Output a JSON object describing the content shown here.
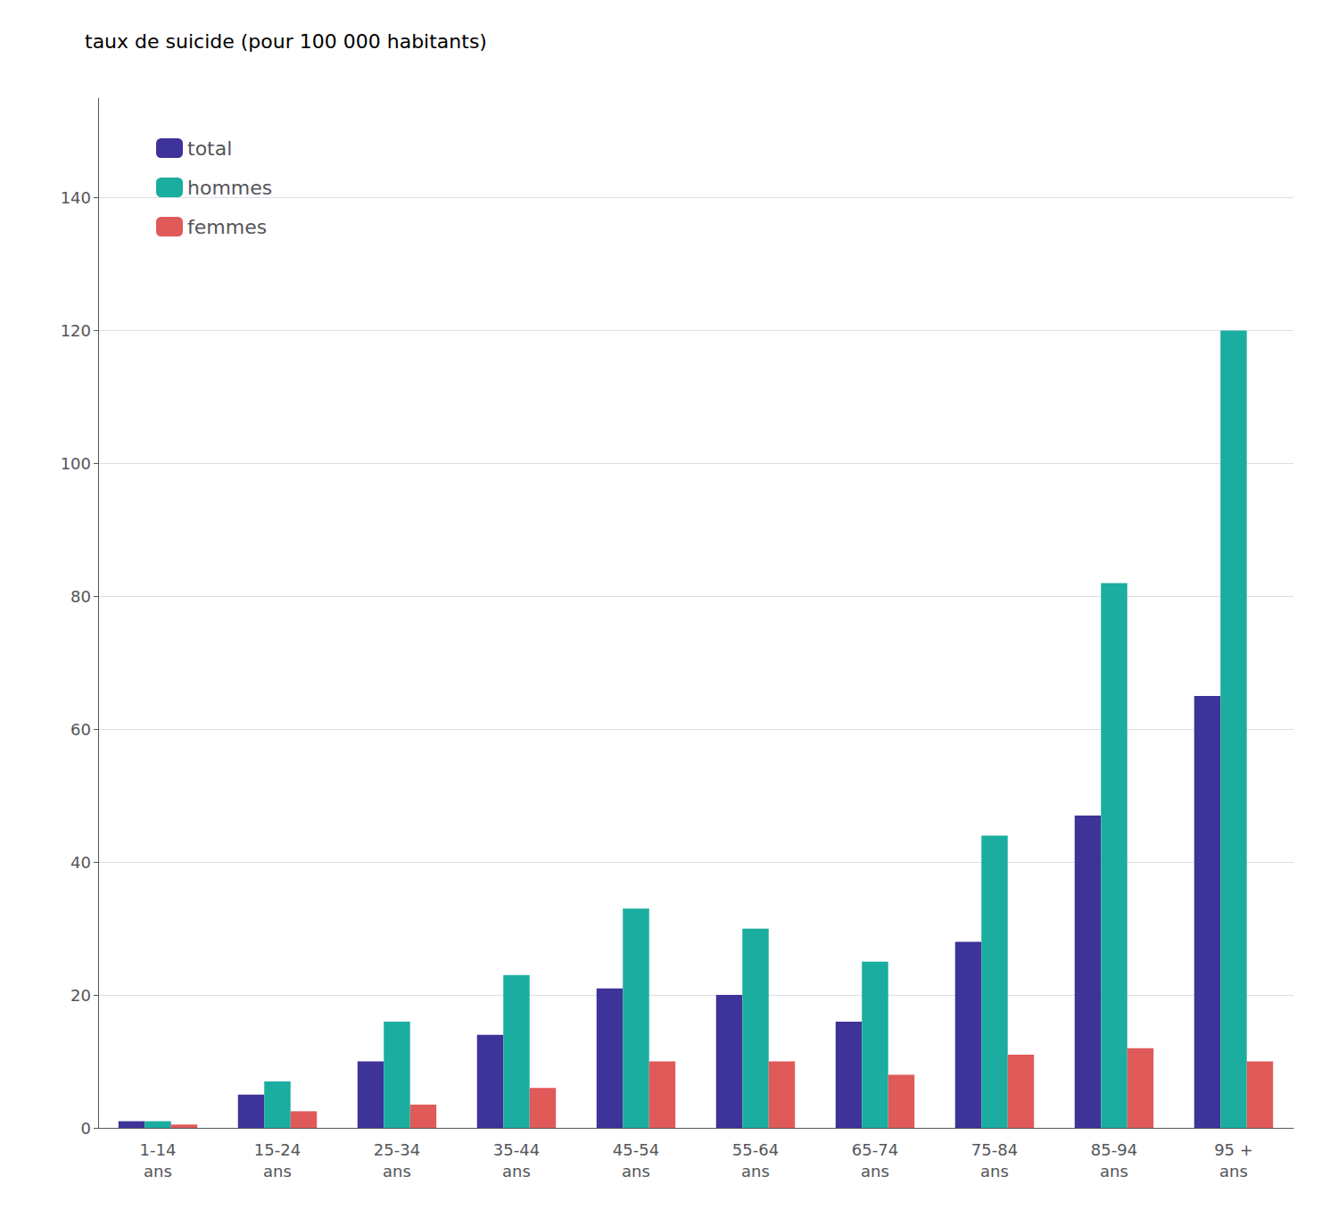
{
  "chart_data": {
    "type": "bar",
    "title": "taux de suicide (pour 100 000 habitants)",
    "categories": [
      "1-14\nans",
      "15-24\nans",
      "25-34\nans",
      "35-44\nans",
      "45-54\nans",
      "55-64\nans",
      "65-74\nans",
      "75-84\nans",
      "85-94\nans",
      "95 +\nans"
    ],
    "series": [
      {
        "name": "total",
        "color": "#3d3399",
        "values": [
          1,
          5,
          10,
          14,
          21,
          20,
          16,
          28,
          47,
          65
        ]
      },
      {
        "name": "hommes",
        "color": "#1aada0",
        "values": [
          1,
          7,
          16,
          23,
          33,
          30,
          25,
          44,
          82,
          120
        ]
      },
      {
        "name": "femmes",
        "color": "#e05a5a",
        "values": [
          0.5,
          2.5,
          3.5,
          6,
          10,
          10,
          8,
          11,
          12,
          10
        ]
      }
    ],
    "ylim": [
      0,
      155
    ],
    "yticks": [
      0,
      20,
      40,
      60,
      80,
      100,
      120,
      140
    ],
    "grid": true,
    "legend": "upper left"
  }
}
